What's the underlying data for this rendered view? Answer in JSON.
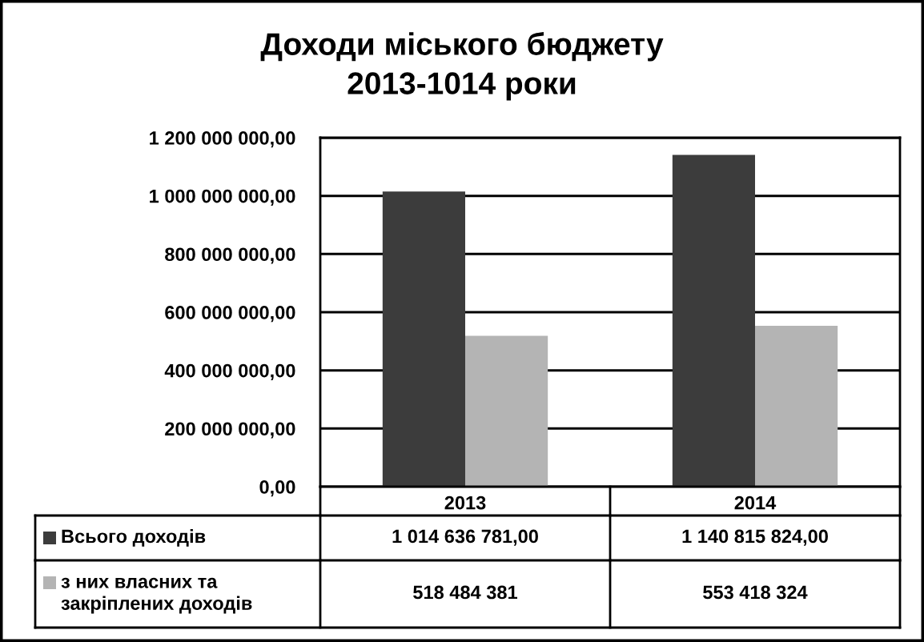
{
  "chart_data": {
    "type": "bar",
    "title": "Доходи міського бюджету\n2013-1014 роки",
    "categories": [
      "2013",
      "2014"
    ],
    "series": [
      {
        "name": "Всього доходів",
        "color": "#3c3c3c",
        "values": [
          1014636781,
          1140815824
        ],
        "value_labels": [
          "1 014 636 781,00",
          "1 140 815 824,00"
        ]
      },
      {
        "name": "з них власних та закріплених доходів",
        "color": "#b4b4b4",
        "values": [
          518484381,
          553418324
        ],
        "value_labels": [
          "518 484 381",
          "553 418 324"
        ]
      }
    ],
    "ylim": [
      0,
      1200000000
    ],
    "yticks": [
      {
        "value": 0,
        "label": "0,00"
      },
      {
        "value": 200000000,
        "label": "200 000 000,00"
      },
      {
        "value": 400000000,
        "label": "400 000 000,00"
      },
      {
        "value": 600000000,
        "label": "600 000 000,00"
      },
      {
        "value": 800000000,
        "label": "800 000 000,00"
      },
      {
        "value": 1000000000,
        "label": "1 000 000 000,00"
      },
      {
        "value": 1200000000,
        "label": "1 200 000 000,00"
      }
    ],
    "grid": "y",
    "legend": "bottom"
  }
}
